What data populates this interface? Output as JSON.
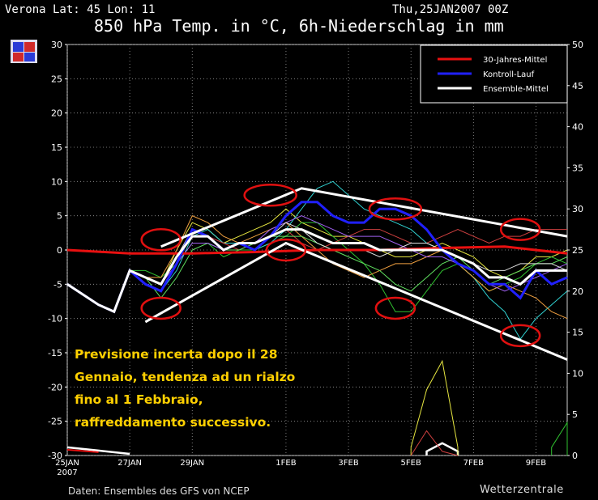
{
  "header": {
    "place": "Verona   Lat: 45 Lon: 11",
    "date": "Thu,25JAN2007 00Z",
    "title": "850 hPa Temp. in °C, 6h-Niederschlag in mm"
  },
  "footer": {
    "source": "Daten: Ensembles des GFS von NCEP",
    "brand": "Wetterzentrale"
  },
  "annotation": [
    "Previsione incerta dopo il 28",
    "Gennaio, tendenza ad un rialzo",
    "fino al 1 Febbraio,",
    "raffreddamento successivo."
  ],
  "colors": {
    "background": "#000000",
    "grid": "#9a9a9a",
    "mittel30": "#e81010",
    "kontroll": "#2020ff",
    "ensemble": "#ffffff",
    "annotation_text": "#ffd000",
    "markup": "#e01010"
  },
  "chart_data": {
    "type": "line",
    "x_start": "2007-01-25",
    "x_end": "2007-02-10",
    "x_ticks": [
      {
        "date": "2007-01-25",
        "label": "25JAN"
      },
      {
        "date": "2007-01-27",
        "label": "27JAN"
      },
      {
        "date": "2007-01-29",
        "label": "29JAN"
      },
      {
        "date": "2007-02-01",
        "label": "1FEB"
      },
      {
        "date": "2007-02-03",
        "label": "3FEB"
      },
      {
        "date": "2007-02-05",
        "label": "5FEB"
      },
      {
        "date": "2007-02-07",
        "label": "7FEB"
      },
      {
        "date": "2007-02-09",
        "label": "9FEB"
      }
    ],
    "x_year_label": "2007",
    "ylim_left": [
      -30,
      30
    ],
    "yticks_left": [
      30,
      25,
      20,
      15,
      10,
      5,
      0,
      -5,
      -10,
      -15,
      -20,
      -25,
      -30
    ],
    "ylim_right": [
      0,
      50
    ],
    "yticks_right": [
      50,
      45,
      40,
      35,
      30,
      25,
      20,
      15,
      10,
      5,
      0
    ],
    "grid": true,
    "legend_position": "top-right",
    "series": [
      {
        "name": "30-Jahres-Mittel",
        "color": "#e81010",
        "x": [
          "2007-01-25",
          "2007-01-27",
          "2007-01-29",
          "2007-01-31",
          "2007-02-02",
          "2007-02-04",
          "2007-02-06",
          "2007-02-08",
          "2007-02-10"
        ],
        "y": [
          0,
          -0.5,
          -0.5,
          -0.3,
          0,
          0,
          0.3,
          0.5,
          -0.5
        ]
      },
      {
        "name": "Kontroll-Lauf",
        "color": "#2020ff",
        "x": [
          "2007-01-25",
          "2007-01-26",
          "2007-01-26 12:00",
          "2007-01-27",
          "2007-01-27 12:00",
          "2007-01-28",
          "2007-01-28 12:00",
          "2007-01-29",
          "2007-01-29 12:00",
          "2007-01-30",
          "2007-01-30 12:00",
          "2007-01-31",
          "2007-01-31 12:00",
          "2007-02-01",
          "2007-02-01 12:00",
          "2007-02-02",
          "2007-02-02 12:00",
          "2007-02-03",
          "2007-02-03 12:00",
          "2007-02-04",
          "2007-02-04 12:00",
          "2007-02-05",
          "2007-02-05 12:00",
          "2007-02-06",
          "2007-02-06 12:00",
          "2007-02-07",
          "2007-02-07 12:00",
          "2007-02-08",
          "2007-02-08 12:00",
          "2007-02-09",
          "2007-02-09 12:00",
          "2007-02-10"
        ],
        "y": [
          -5,
          -8,
          -9,
          -3,
          -5,
          -6,
          -2,
          3,
          2,
          0,
          1,
          0,
          2,
          5,
          7,
          7,
          5,
          4,
          4,
          6,
          6,
          5,
          3,
          0,
          -2,
          -3,
          -5,
          -5,
          -7,
          -3,
          -5,
          -4
        ]
      },
      {
        "name": "Ensemble-Mittel",
        "color": "#ffffff",
        "x": [
          "2007-01-25",
          "2007-01-26",
          "2007-01-26 12:00",
          "2007-01-27",
          "2007-01-27 12:00",
          "2007-01-28",
          "2007-01-28 12:00",
          "2007-01-29",
          "2007-01-29 12:00",
          "2007-01-30",
          "2007-01-30 12:00",
          "2007-01-31",
          "2007-01-31 12:00",
          "2007-02-01",
          "2007-02-01 12:00",
          "2007-02-02",
          "2007-02-02 12:00",
          "2007-02-03",
          "2007-02-03 12:00",
          "2007-02-04",
          "2007-02-04 12:00",
          "2007-02-05",
          "2007-02-05 12:00",
          "2007-02-06",
          "2007-02-06 12:00",
          "2007-02-07",
          "2007-02-07 12:00",
          "2007-02-08",
          "2007-02-08 12:00",
          "2007-02-09",
          "2007-02-09 12:00",
          "2007-02-10"
        ],
        "y": [
          -5,
          -8,
          -9,
          -3,
          -4,
          -5,
          -1,
          2,
          2,
          0,
          1,
          1,
          2,
          3,
          3,
          2,
          1,
          1,
          1,
          0,
          0,
          0,
          0,
          0,
          -1,
          -2,
          -4,
          -4,
          -5,
          -3,
          -3,
          -3
        ]
      }
    ],
    "ensemble_members": [
      {
        "color": "#e6e640",
        "y": [
          -5,
          -8,
          -9,
          -3,
          -4,
          -5,
          0,
          4,
          3,
          1,
          2,
          3,
          4,
          6,
          4,
          3,
          2,
          2,
          1,
          0,
          -1,
          -1,
          0,
          1,
          0,
          -1,
          -3,
          -4,
          -3,
          -1,
          -1,
          0
        ]
      },
      {
        "color": "#30c030",
        "y": [
          -5,
          -8,
          -9,
          -3,
          -3,
          -4,
          -2,
          1,
          1,
          -1,
          0,
          0,
          1,
          2,
          4,
          4,
          2,
          0,
          -2,
          -5,
          -9,
          -9,
          -6,
          -3,
          -2,
          -4,
          -6,
          -5,
          -4,
          -2,
          -1,
          -2
        ]
      },
      {
        "color": "#30d0d0",
        "y": [
          -5,
          -8,
          -9,
          -3,
          -5,
          -6,
          -3,
          2,
          3,
          1,
          1,
          0,
          1,
          3,
          6,
          9,
          10,
          8,
          6,
          5,
          4,
          3,
          1,
          0,
          -2,
          -4,
          -7,
          -9,
          -13,
          -10,
          -8,
          -6
        ]
      },
      {
        "color": "#f0a040",
        "y": [
          -5,
          -8,
          -9,
          -3,
          -4,
          -4,
          0,
          5,
          4,
          2,
          1,
          2,
          3,
          4,
          2,
          0,
          -2,
          -3,
          -4,
          -3,
          -2,
          -2,
          -1,
          0,
          -2,
          -4,
          -6,
          -5,
          -6,
          -7,
          -9,
          -10
        ]
      },
      {
        "color": "#d04040",
        "y": [
          -5,
          -8,
          -9,
          -3,
          -4,
          -5,
          -1,
          2,
          2,
          1,
          0,
          1,
          2,
          3,
          1,
          0,
          1,
          2,
          3,
          3,
          2,
          1,
          1,
          2,
          3,
          2,
          1,
          2,
          2,
          3,
          3,
          3
        ]
      },
      {
        "color": "#60e060",
        "y": [
          -5,
          -8,
          -9,
          -3,
          -4,
          -7,
          -4,
          0,
          1,
          0,
          0,
          1,
          2,
          2,
          2,
          1,
          0,
          -1,
          -2,
          -3,
          -5,
          -6,
          -4,
          -2,
          -1,
          -3,
          -5,
          -4,
          -3,
          -2,
          -2,
          -1
        ]
      },
      {
        "color": "#a060f0",
        "y": [
          -5,
          -8,
          -9,
          -3,
          -4,
          -5,
          -2,
          1,
          1,
          0,
          1,
          1,
          3,
          4,
          5,
          4,
          3,
          2,
          2,
          2,
          1,
          0,
          -1,
          -1,
          -2,
          -3,
          -5,
          -6,
          -5,
          -4,
          -3,
          -2
        ]
      },
      {
        "color": "#e0e0e0",
        "y": [
          -5,
          -8,
          -9,
          -3,
          -4,
          -5,
          -1,
          3,
          2,
          0,
          1,
          0,
          2,
          4,
          3,
          1,
          0,
          0,
          0,
          -1,
          0,
          1,
          1,
          0,
          -1,
          -2,
          -3,
          -3,
          -2,
          -2,
          -2,
          -3
        ]
      }
    ],
    "precipitation": {
      "axis": "right",
      "series": [
        {
          "name": "Ensemble-Mittel",
          "color": "#ffffff",
          "x": [
            "2007-02-05 12:00",
            "2007-02-06",
            "2007-02-06 12:00"
          ],
          "y": [
            0.5,
            1.5,
            0.5
          ]
        },
        {
          "color": "#e6e640",
          "x": [
            "2007-02-05",
            "2007-02-05 12:00",
            "2007-02-06",
            "2007-02-06 12:00"
          ],
          "y": [
            1,
            8,
            11.5,
            1
          ]
        },
        {
          "color": "#d04040",
          "x": [
            "2007-02-05",
            "2007-02-05 12:00",
            "2007-02-06",
            "2007-02-06 12:00"
          ],
          "y": [
            0,
            3,
            0.5,
            0
          ]
        },
        {
          "color": "#30c030",
          "x": [
            "2007-02-09 12:00",
            "2007-02-10"
          ],
          "y": [
            1,
            4
          ]
        }
      ]
    },
    "markup": {
      "trend_lines": [
        {
          "x": [
            "2007-01-28",
            "2007-02-01 12:00",
            "2007-02-10"
          ],
          "y": [
            0.5,
            9,
            2
          ]
        },
        {
          "x": [
            "2007-01-27 12:00",
            "2007-02-01",
            "2007-02-10"
          ],
          "y": [
            -10.5,
            1,
            -16
          ]
        }
      ],
      "ellipses": [
        {
          "x": "2007-01-28",
          "y": 1.5
        },
        {
          "x": "2007-01-28",
          "y": -8.5
        },
        {
          "x": "2007-01-31 12:00",
          "y": 8
        },
        {
          "x": "2007-02-01",
          "y": 0
        },
        {
          "x": "2007-02-04 12:00",
          "y": 6
        },
        {
          "x": "2007-02-04 12:00",
          "y": -8.5
        },
        {
          "x": "2007-02-08 12:00",
          "y": 3
        },
        {
          "x": "2007-02-08 12:00",
          "y": -12.5
        }
      ]
    },
    "legend": [
      "30-Jahres-Mittel",
      "Kontroll-Lauf",
      "Ensemble-Mittel"
    ]
  }
}
